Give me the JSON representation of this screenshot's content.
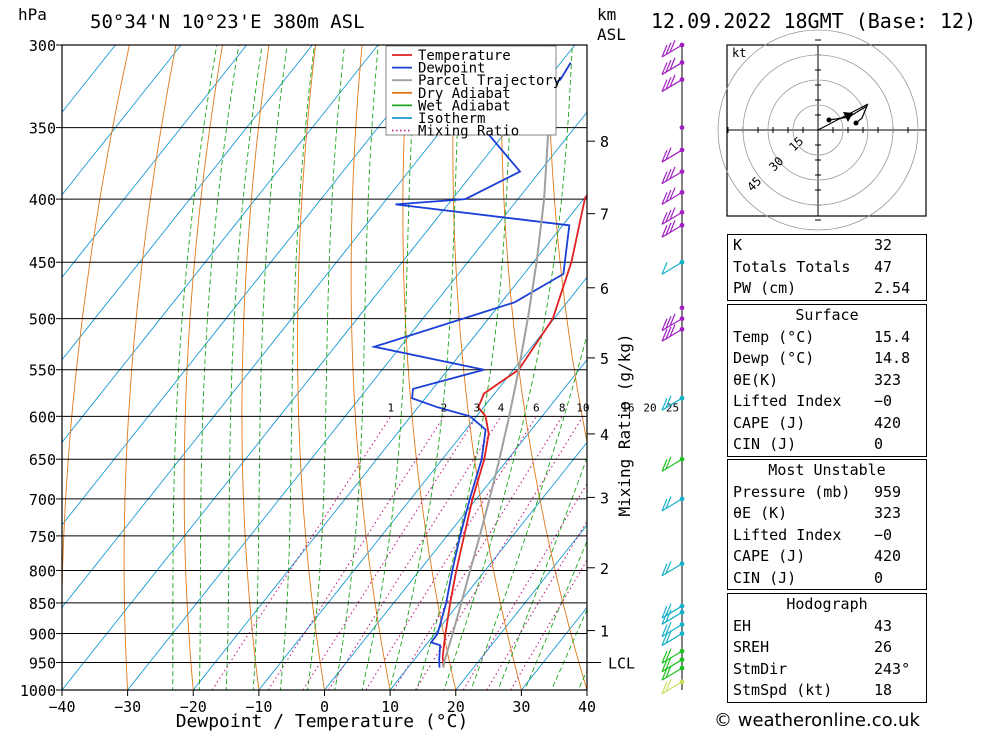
{
  "header": {
    "location": "50°34'N  10°23'E  380m  ASL",
    "pressure_unit": "hPa",
    "km_unit": "km",
    "asl_unit": "ASL",
    "datetime": "12.09.2022  18GMT  (Base: 12)"
  },
  "chart_data": {
    "type": "line",
    "subtype": "skew-t log-p",
    "xlabel": "Dewpoint / Temperature (°C)",
    "ylabel_right": "Mixing Ratio (g/kg)",
    "x_ticks": [
      -40,
      -30,
      -20,
      -10,
      0,
      10,
      20,
      30,
      40
    ],
    "y_ticks_hpa": [
      300,
      350,
      400,
      450,
      500,
      550,
      600,
      650,
      700,
      750,
      800,
      850,
      900,
      950,
      1000
    ],
    "ylim_hpa": [
      1000,
      300
    ],
    "xlim_c": [
      -40,
      40
    ],
    "y_scale": "log",
    "km_ticks": [
      {
        "km": "1",
        "p": 895
      },
      {
        "km": "2",
        "p": 796
      },
      {
        "km": "3",
        "p": 698
      },
      {
        "km": "4",
        "p": 620
      },
      {
        "km": "5",
        "p": 538
      },
      {
        "km": "6",
        "p": 472
      },
      {
        "km": "7",
        "p": 411
      },
      {
        "km": "8",
        "p": 359
      }
    ],
    "lcl": {
      "label": "LCL",
      "p": 950
    },
    "mixing_ratio_labels": [
      "1",
      "2",
      "3",
      "4",
      "6",
      "8",
      "10",
      "16",
      "20",
      "25"
    ],
    "legend": [
      {
        "name": "Temperature",
        "color": "#e02020",
        "style": "solid"
      },
      {
        "name": "Dewpoint",
        "color": "#1a3fd6",
        "style": "solid"
      },
      {
        "name": "Parcel Trajectory",
        "color": "#a0a0a0",
        "style": "solid"
      },
      {
        "name": "Dry Adiabat",
        "color": "#e07818",
        "style": "solid"
      },
      {
        "name": "Wet Adiabat",
        "color": "#1aa61a",
        "style": "solid"
      },
      {
        "name": "Isotherm",
        "color": "#1a9ad6",
        "style": "solid"
      },
      {
        "name": "Mixing Ratio",
        "color": "#c0208a",
        "style": "dotted"
      }
    ],
    "series": [
      {
        "name": "Temperature",
        "color": "#e02020",
        "points": [
          [
            959,
            15.4
          ],
          [
            940,
            14.0
          ],
          [
            920,
            12.8
          ],
          [
            900,
            11.6
          ],
          [
            850,
            8.6
          ],
          [
            800,
            5.6
          ],
          [
            750,
            2.6
          ],
          [
            700,
            -0.6
          ],
          [
            650,
            -3.6
          ],
          [
            620,
            -6.0
          ],
          [
            600,
            -8.6
          ],
          [
            590,
            -10.8
          ],
          [
            575,
            -11.6
          ],
          [
            560,
            -10.2
          ],
          [
            550,
            -9.2
          ],
          [
            500,
            -10.2
          ],
          [
            450,
            -14.2
          ],
          [
            400,
            -19.8
          ],
          [
            380,
            -20.8
          ],
          [
            350,
            -26.8
          ],
          [
            320,
            -32.5
          ],
          [
            300,
            -37.0
          ]
        ]
      },
      {
        "name": "Dewpoint",
        "color": "#1a3fd6",
        "points": [
          [
            959,
            14.8
          ],
          [
            945,
            13.8
          ],
          [
            920,
            12.2
          ],
          [
            915,
            10.5
          ],
          [
            900,
            10.4
          ],
          [
            850,
            8.0
          ],
          [
            800,
            5.0
          ],
          [
            750,
            2.0
          ],
          [
            700,
            -1.0
          ],
          [
            650,
            -4.0
          ],
          [
            615,
            -7.0
          ],
          [
            600,
            -11.0
          ],
          [
            590,
            -17.0
          ],
          [
            580,
            -22.0
          ],
          [
            570,
            -23.0
          ],
          [
            550,
            -14.5
          ],
          [
            527,
            -34.0
          ],
          [
            485,
            -18.0
          ],
          [
            460,
            -14.0
          ],
          [
            420,
            -19.0
          ],
          [
            404,
            -48.0
          ],
          [
            400,
            -38.0
          ],
          [
            380,
            -33.0
          ],
          [
            350,
            -44.0
          ],
          [
            320,
            -38.0
          ],
          [
            310,
            -38.5
          ]
        ]
      },
      {
        "name": "Parcel Trajectory",
        "color": "#a0a0a0",
        "points": [
          [
            959,
            15.4
          ],
          [
            950,
            14.9
          ],
          [
            900,
            12.7
          ],
          [
            850,
            10.3
          ],
          [
            800,
            7.7
          ],
          [
            750,
            5.0
          ],
          [
            700,
            2.0
          ],
          [
            650,
            -1.3
          ],
          [
            600,
            -5.0
          ],
          [
            550,
            -9.2
          ],
          [
            500,
            -14.0
          ],
          [
            450,
            -19.5
          ],
          [
            400,
            -26.0
          ],
          [
            350,
            -34.0
          ],
          [
            300,
            -44.0
          ]
        ]
      }
    ],
    "wind_barbs_note": "colored barbs along right side, purple aloft to cyan and green at low levels",
    "hodograph": {
      "unit": "kt",
      "ring_labels": [
        "15",
        "30",
        "45"
      ]
    }
  },
  "indices": {
    "rows": [
      {
        "label": "K",
        "value": "32"
      },
      {
        "label": "Totals Totals",
        "value": "47"
      },
      {
        "label": "PW (cm)",
        "value": "2.54"
      }
    ]
  },
  "surface": {
    "title": "Surface",
    "rows": [
      {
        "label": "Temp (°C)",
        "value": "15.4"
      },
      {
        "label": "Dewp (°C)",
        "value": "14.8"
      },
      {
        "label": "θE(K)",
        "value": "323"
      },
      {
        "label": "Lifted Index",
        "value": "−0"
      },
      {
        "label": "CAPE (J)",
        "value": "420"
      },
      {
        "label": "CIN (J)",
        "value": "0"
      }
    ]
  },
  "most_unstable": {
    "title": "Most Unstable",
    "rows": [
      {
        "label": "Pressure (mb)",
        "value": "959"
      },
      {
        "label": "θE (K)",
        "value": "323"
      },
      {
        "label": "Lifted Index",
        "value": "−0"
      },
      {
        "label": "CAPE (J)",
        "value": "420"
      },
      {
        "label": "CIN (J)",
        "value": "0"
      }
    ]
  },
  "hodograph_table": {
    "title": "Hodograph",
    "rows": [
      {
        "label": "EH",
        "value": "43"
      },
      {
        "label": "SREH",
        "value": "26"
      },
      {
        "label": "StmDir",
        "value": "243°"
      },
      {
        "label": "StmSpd (kt)",
        "value": "18"
      }
    ]
  },
  "credit": "© weatheronline.co.uk"
}
